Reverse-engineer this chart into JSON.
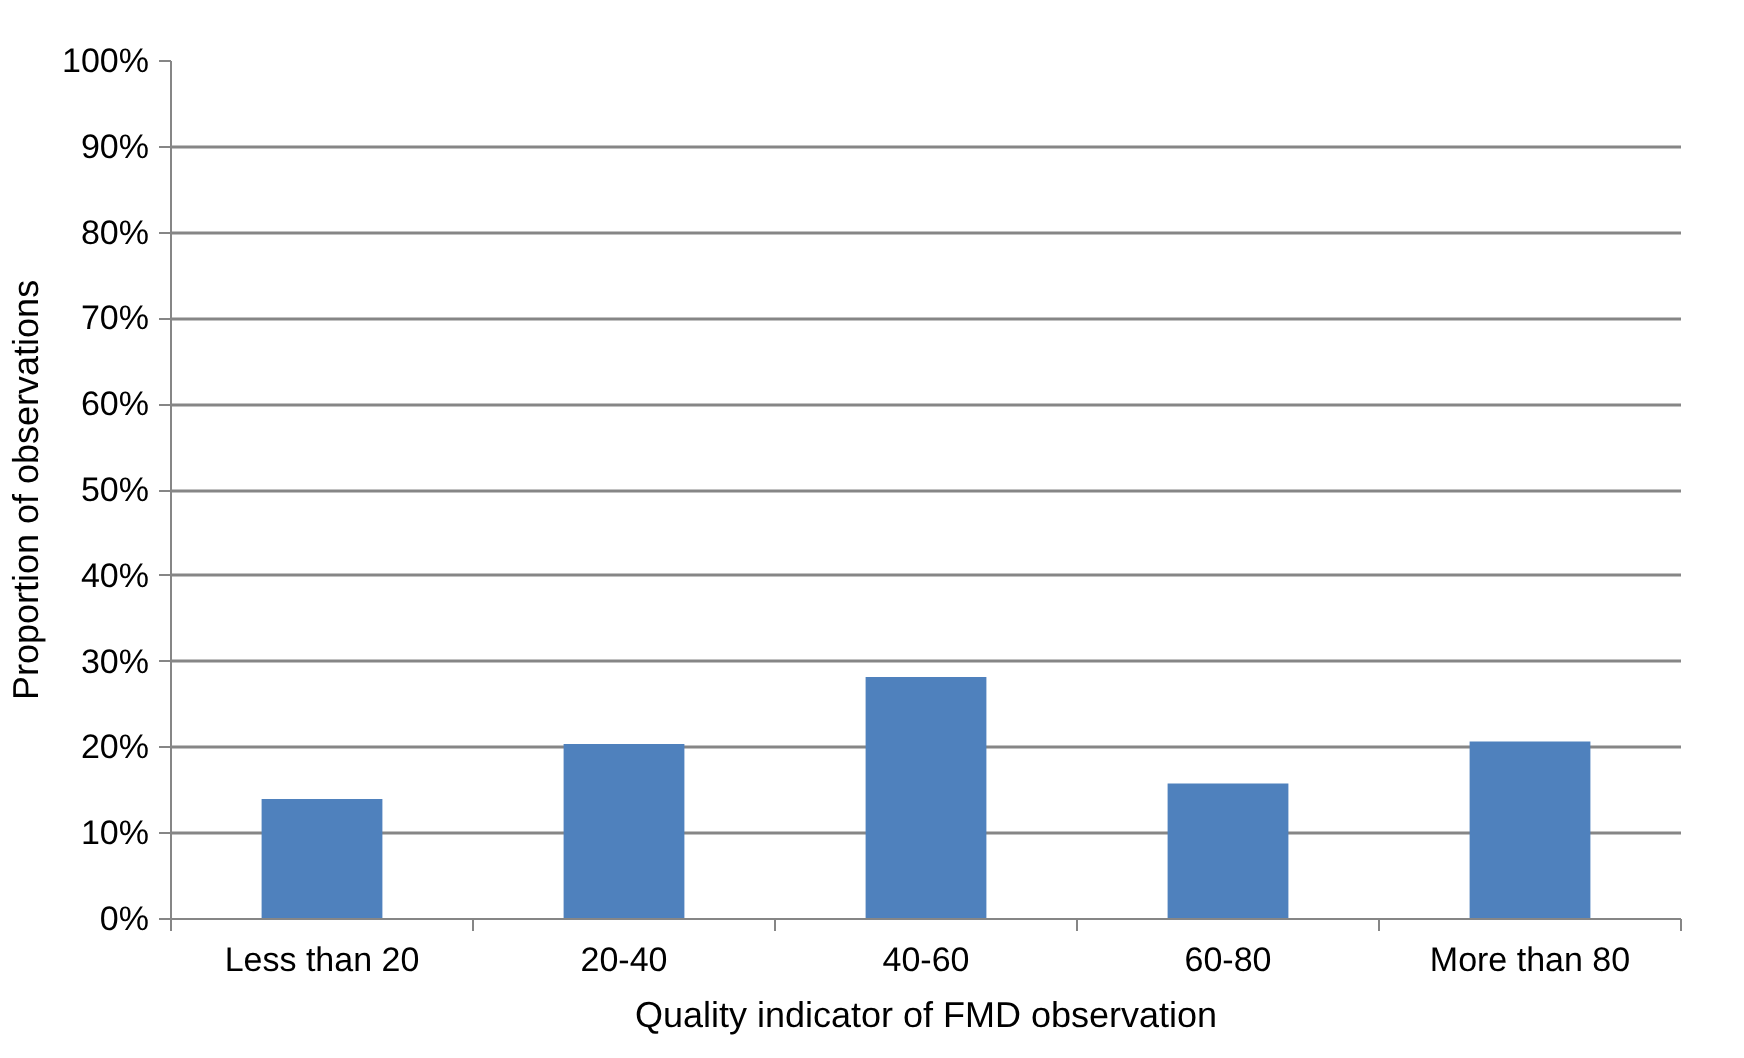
{
  "chart_data": {
    "type": "bar",
    "xlabel": "Quality indicator of FMD observation",
    "ylabel": "Proportion of observations",
    "categories": [
      "Less than 20",
      "20-40",
      "40-60",
      "60-80",
      "More than 80"
    ],
    "values": [
      14,
      20.4,
      28.2,
      15.8,
      20.7
    ],
    "color": "#4f81bd",
    "ylim": [
      0,
      100
    ],
    "yticks": [
      {
        "value": 0,
        "label": "0%"
      },
      {
        "value": 10,
        "label": "10%"
      },
      {
        "value": 20,
        "label": "20%"
      },
      {
        "value": 30,
        "label": "30%"
      },
      {
        "value": 40,
        "label": "40%"
      },
      {
        "value": 50,
        "label": "50%"
      },
      {
        "value": 60,
        "label": "60%"
      },
      {
        "value": 70,
        "label": "70%"
      },
      {
        "value": 80,
        "label": "80%"
      },
      {
        "value": 90,
        "label": "90%"
      },
      {
        "value": 100,
        "label": "100%"
      }
    ],
    "grid": "y"
  }
}
